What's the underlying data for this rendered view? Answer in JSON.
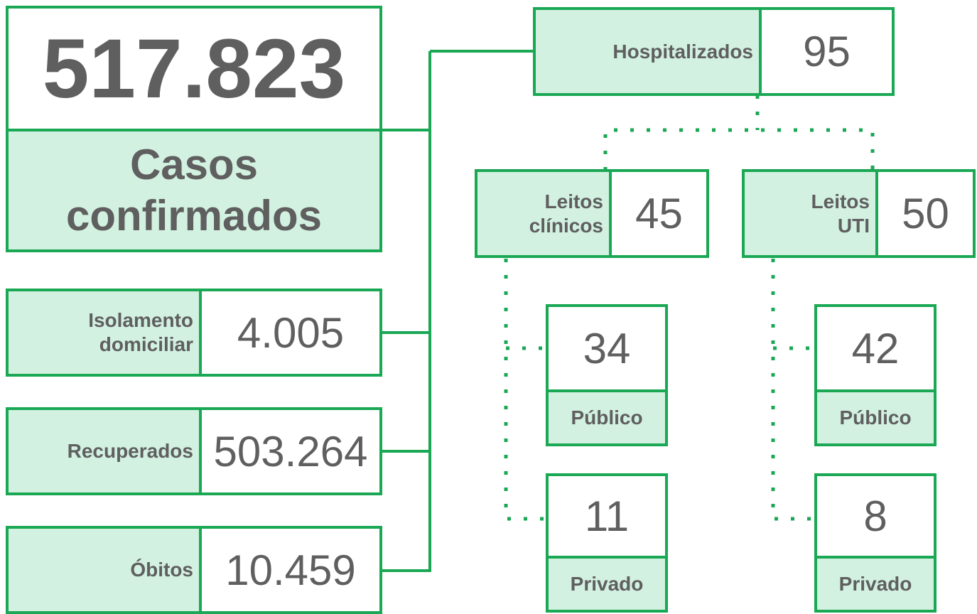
{
  "total": {
    "value": "517.823",
    "label": "Casos confirmados"
  },
  "status": [
    {
      "label": "Isolamento domiciliar",
      "value": "4.005"
    },
    {
      "label": "Recuperados",
      "value": "503.264"
    },
    {
      "label": "Óbitos",
      "value": "10.459"
    }
  ],
  "hospital": {
    "label": "Hospitalizados",
    "value": "95",
    "beds": [
      {
        "label": "Leitos clínicos",
        "value": "45",
        "split": [
          {
            "value": "34",
            "label": "Público"
          },
          {
            "value": "11",
            "label": "Privado"
          }
        ]
      },
      {
        "label": "Leitos UTI",
        "value": "50",
        "split": [
          {
            "value": "42",
            "label": "Público"
          },
          {
            "value": "8",
            "label": "Privado"
          }
        ]
      }
    ]
  }
}
